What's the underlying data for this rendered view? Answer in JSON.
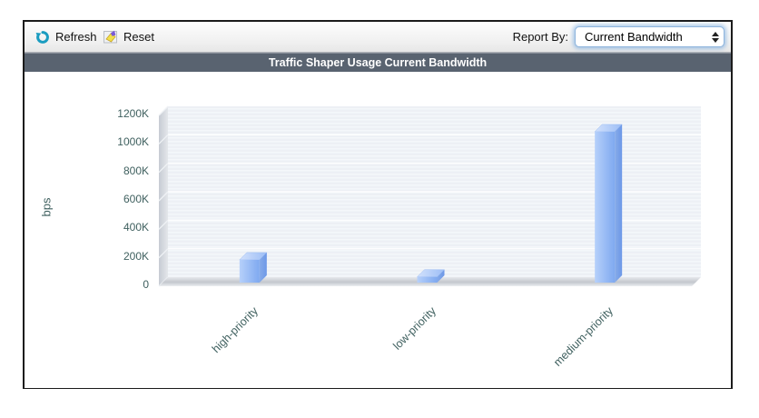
{
  "toolbar": {
    "refresh_label": "Refresh",
    "reset_label": "Reset",
    "report_by_label": "Report By:",
    "report_by_value": "Current Bandwidth"
  },
  "title_bar": {
    "title": "Traffic Shaper Usage Current Bandwidth"
  },
  "chart_data": {
    "type": "bar",
    "style": "3d-bars",
    "title": "Traffic Shaper Usage Current Bandwidth",
    "categories": [
      "high-priority",
      "low-priority",
      "medium-priority"
    ],
    "values": [
      160000,
      40000,
      1060000
    ],
    "xlabel": "",
    "ylabel": "bps",
    "yticks": [
      "1200K",
      "1000K",
      "800K",
      "600K",
      "400K",
      "200K",
      "0"
    ],
    "ylim": [
      0,
      1200000
    ],
    "grid": true,
    "legend": "none"
  },
  "colors": {
    "title_bar_bg": "#596370",
    "axis_text": "#3f605f",
    "bar_front_light": "#b6d0fa",
    "bar_front_dark": "#7fa9f0",
    "bar_side": "#6d98e8",
    "plot_bg": "#edf0f5",
    "wall_gray": "#c9ced6",
    "refresh_icon": "#1a9cc0",
    "select_focus_ring": "#6ca4de"
  }
}
